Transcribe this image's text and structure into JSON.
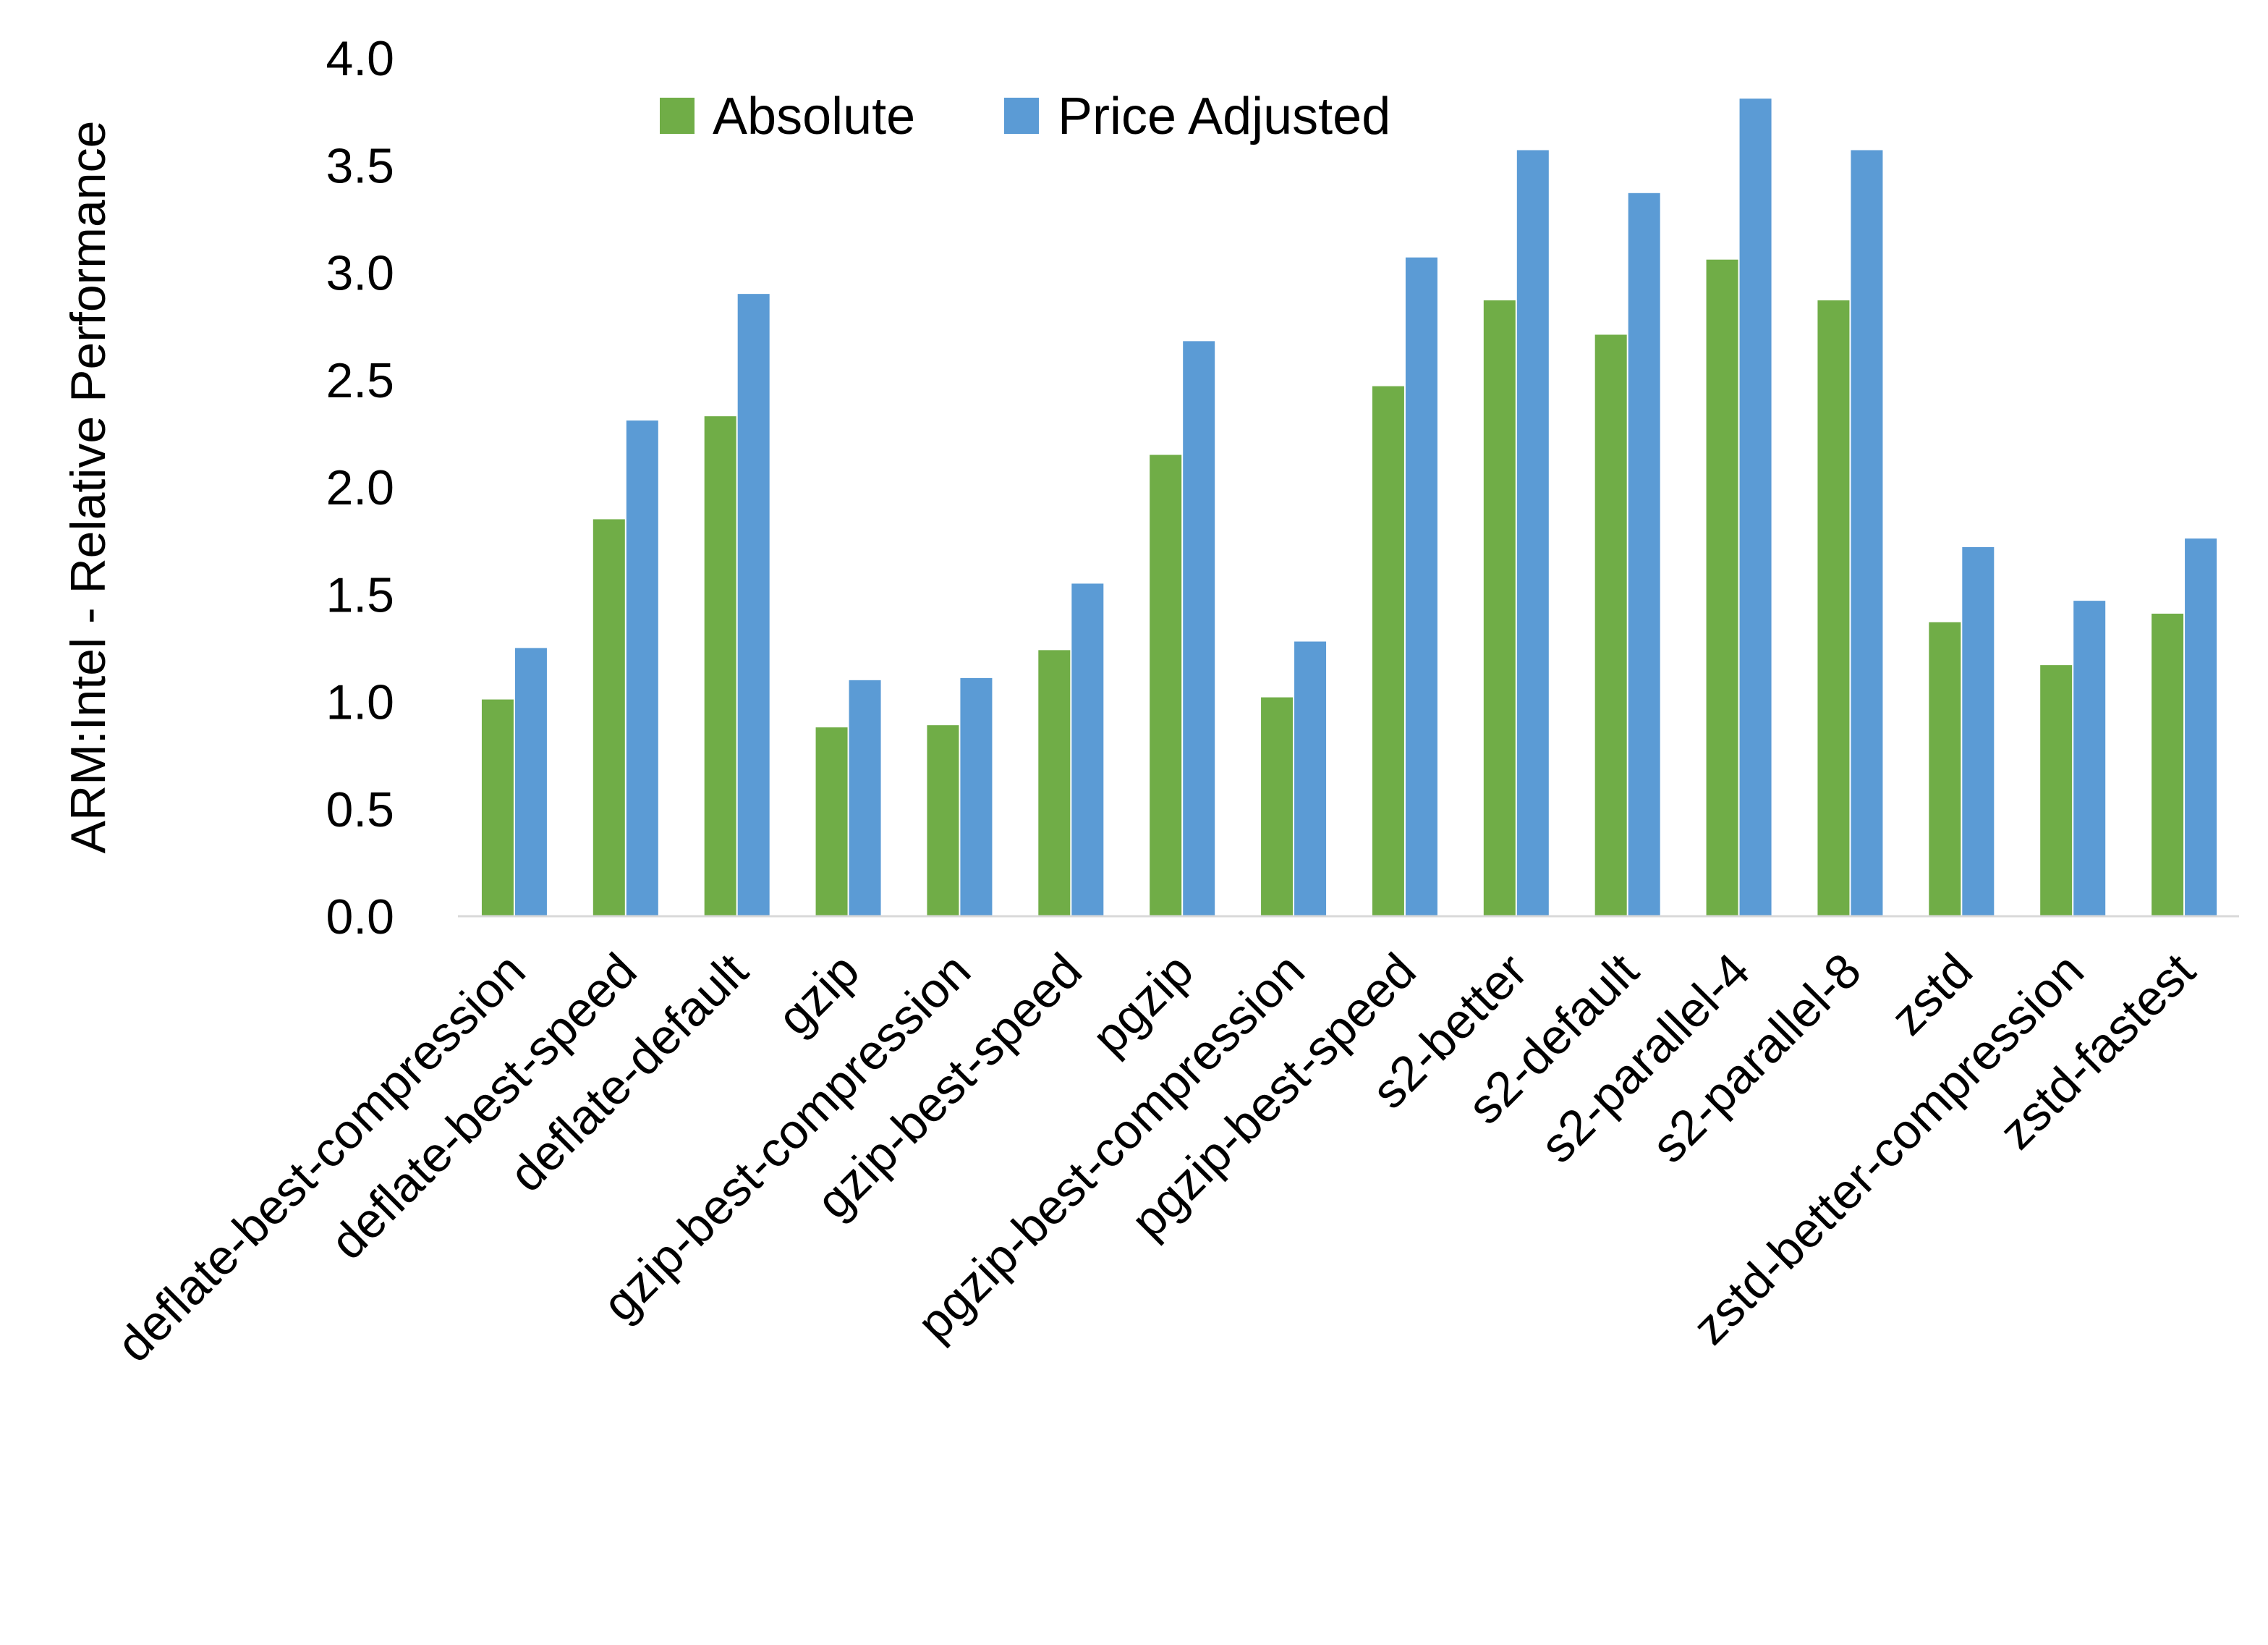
{
  "chart_data": {
    "type": "bar",
    "title": "",
    "xlabel": "",
    "ylabel": "ARM:Intel - Relative Performance",
    "ylim": [
      0,
      4.0
    ],
    "yticks": [
      "0.0",
      "0.5",
      "1.0",
      "1.5",
      "2.0",
      "2.5",
      "3.0",
      "3.5",
      "4.0"
    ],
    "grid": false,
    "legend_position": "top",
    "categories": [
      "deflate-best-compression",
      "deflate-best-speed",
      "deflate-default",
      "gzip",
      "gzip-best-compression",
      "gzip-best-speed",
      "pgzip",
      "pgzip-best-compression",
      "pgzip-best-speed",
      "s2-better",
      "s2-default",
      "s2-parallel-4",
      "s2-parallel-8",
      "zstd",
      "zstd-better-compression",
      "zstd-fastest"
    ],
    "series": [
      {
        "name": "Absolute",
        "color": "#70AD47",
        "values": [
          1.01,
          1.85,
          2.33,
          0.88,
          0.89,
          1.24,
          2.15,
          1.02,
          2.47,
          2.87,
          2.71,
          3.06,
          2.87,
          1.37,
          1.17,
          1.41
        ]
      },
      {
        "name": "Price Adjusted",
        "color": "#5B9BD5",
        "values": [
          1.25,
          2.31,
          2.9,
          1.1,
          1.11,
          1.55,
          2.68,
          1.28,
          3.07,
          3.57,
          3.37,
          3.81,
          3.57,
          1.72,
          1.47,
          1.76
        ]
      }
    ]
  }
}
